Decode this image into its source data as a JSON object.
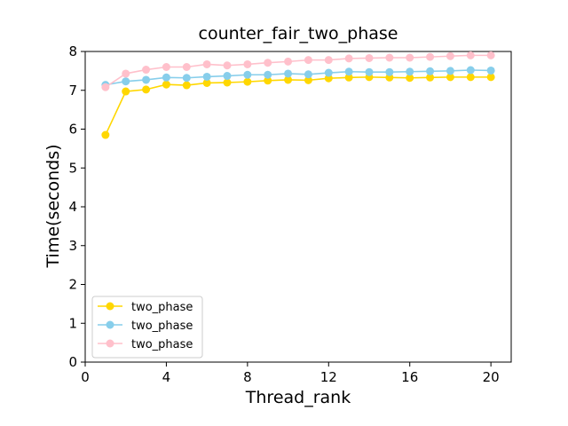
{
  "chart_data": {
    "type": "line",
    "title": "counter_fair_two_phase",
    "xlabel": "Thread_rank",
    "ylabel": "Time(seconds)",
    "xlim": [
      0,
      21
    ],
    "ylim": [
      0,
      8
    ],
    "xticks": [
      0,
      4,
      8,
      12,
      16,
      20
    ],
    "yticks": [
      0,
      1,
      2,
      3,
      4,
      5,
      6,
      7,
      8
    ],
    "grid": false,
    "legend_position": "lower-left",
    "x": [
      1,
      2,
      3,
      4,
      5,
      6,
      7,
      8,
      9,
      10,
      11,
      12,
      13,
      14,
      15,
      16,
      17,
      18,
      19,
      20
    ],
    "series": [
      {
        "name": "two_phase",
        "color": "#ffd700",
        "values": [
          5.85,
          6.97,
          7.02,
          7.15,
          7.13,
          7.19,
          7.2,
          7.22,
          7.25,
          7.27,
          7.26,
          7.31,
          7.33,
          7.34,
          7.33,
          7.32,
          7.33,
          7.34,
          7.34,
          7.34
        ]
      },
      {
        "name": "two_phase",
        "color": "#87ceeb",
        "values": [
          7.14,
          7.23,
          7.27,
          7.33,
          7.32,
          7.35,
          7.37,
          7.4,
          7.4,
          7.43,
          7.41,
          7.45,
          7.48,
          7.47,
          7.47,
          7.48,
          7.49,
          7.5,
          7.52,
          7.51
        ]
      },
      {
        "name": "two_phase",
        "color": "#ffc0cb",
        "values": [
          7.08,
          7.43,
          7.53,
          7.6,
          7.6,
          7.67,
          7.64,
          7.67,
          7.71,
          7.74,
          7.78,
          7.78,
          7.82,
          7.83,
          7.84,
          7.84,
          7.86,
          7.88,
          7.9,
          7.9
        ]
      }
    ]
  }
}
